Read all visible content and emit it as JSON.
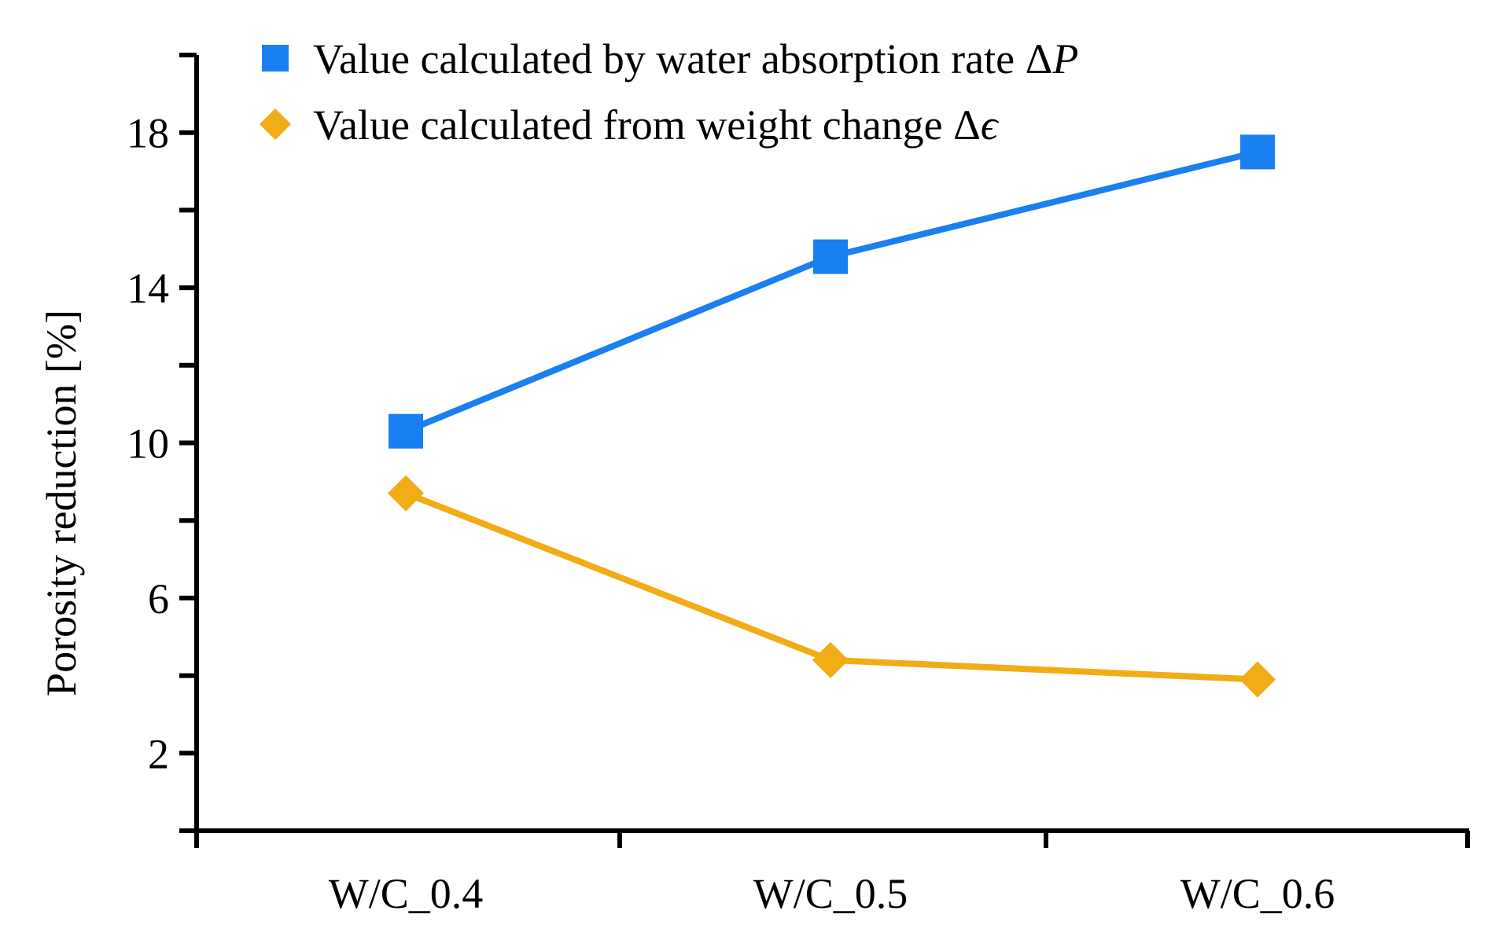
{
  "chart_data": {
    "type": "line",
    "title": "",
    "xlabel": "",
    "ylabel": "Porosity reduction  [%]",
    "categories": [
      "W/C_0.4",
      "W/C_0.5",
      "W/C_0.6"
    ],
    "ylim": [
      0,
      20
    ],
    "y_major_ticks": [
      2,
      6,
      10,
      14,
      18
    ],
    "y_minor_ticks": [
      0,
      4,
      8,
      12,
      16,
      20
    ],
    "grid": false,
    "legend_position": "top",
    "series": [
      {
        "name": "Value calculated by water absorption rate ΔP",
        "label_main": "Value calculated by water absorption rate Δ",
        "label_symbol": "P",
        "marker": "square",
        "color": "#1a7ff0",
        "values": [
          10.3,
          14.8,
          17.5
        ]
      },
      {
        "name": "Value calculated from weight change Δϵ",
        "label_main": "Value calculated from weight change Δ",
        "label_symbol": "ϵ",
        "marker": "diamond",
        "color": "#f2ac16",
        "values": [
          8.7,
          4.4,
          3.9
        ]
      }
    ]
  }
}
